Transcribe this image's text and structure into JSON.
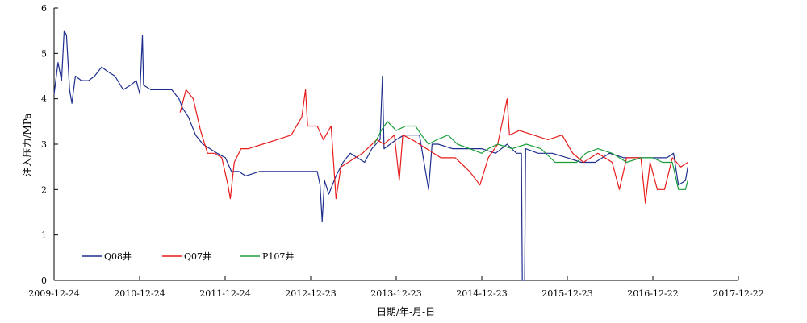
{
  "chart_data": {
    "type": "line",
    "xlabel": "日期/年-月-日",
    "ylabel": "注入压力/MPa",
    "ylim": [
      0,
      6
    ],
    "yticks": [
      0,
      1,
      2,
      3,
      4,
      5,
      6
    ],
    "xlim": [
      "2009-12-24",
      "2017-12-22"
    ],
    "xticks": [
      "2009-12-24",
      "2010-12-24",
      "2011-12-24",
      "2012-12-23",
      "2013-12-23",
      "2014-12-23",
      "2015-12-23",
      "2016-12-22",
      "2017-12-22"
    ],
    "legend_position": "bottom-left inside",
    "grid": false,
    "series": [
      {
        "name": "Q08井",
        "color": "#1f2f8f",
        "points": [
          [
            "2009-12-24",
            4.1
          ],
          [
            "2010-01-10",
            4.8
          ],
          [
            "2010-01-25",
            4.4
          ],
          [
            "2010-02-05",
            5.5
          ],
          [
            "2010-02-15",
            5.4
          ],
          [
            "2010-02-28",
            4.2
          ],
          [
            "2010-03-10",
            3.9
          ],
          [
            "2010-03-25",
            4.5
          ],
          [
            "2010-04-20",
            4.4
          ],
          [
            "2010-05-20",
            4.4
          ],
          [
            "2010-06-15",
            4.5
          ],
          [
            "2010-07-15",
            4.7
          ],
          [
            "2010-08-10",
            4.6
          ],
          [
            "2010-09-10",
            4.5
          ],
          [
            "2010-10-15",
            4.2
          ],
          [
            "2010-11-15",
            4.3
          ],
          [
            "2010-12-10",
            4.4
          ],
          [
            "2010-12-25",
            4.1
          ],
          [
            "2011-01-05",
            5.4
          ],
          [
            "2011-01-10",
            4.3
          ],
          [
            "2011-02-10",
            4.2
          ],
          [
            "2011-03-10",
            4.2
          ],
          [
            "2011-04-10",
            4.2
          ],
          [
            "2011-05-10",
            4.2
          ],
          [
            "2011-06-10",
            4.0
          ],
          [
            "2011-06-25",
            3.8
          ],
          [
            "2011-07-20",
            3.6
          ],
          [
            "2011-08-20",
            3.2
          ],
          [
            "2011-09-20",
            3.0
          ],
          [
            "2011-10-20",
            2.9
          ],
          [
            "2011-11-20",
            2.8
          ],
          [
            "2011-12-25",
            2.7
          ],
          [
            "2012-01-20",
            2.4
          ],
          [
            "2012-02-20",
            2.4
          ],
          [
            "2012-03-20",
            2.3
          ],
          [
            "2012-05-20",
            2.4
          ],
          [
            "2012-07-20",
            2.4
          ],
          [
            "2012-09-20",
            2.4
          ],
          [
            "2012-11-20",
            2.4
          ],
          [
            "2012-12-23",
            2.4
          ],
          [
            "2013-01-20",
            2.4
          ],
          [
            "2013-02-01",
            2.1
          ],
          [
            "2013-02-10",
            1.3
          ],
          [
            "2013-02-20",
            2.2
          ],
          [
            "2013-03-10",
            1.9
          ],
          [
            "2013-04-10",
            2.3
          ],
          [
            "2013-05-10",
            2.6
          ],
          [
            "2013-06-10",
            2.8
          ],
          [
            "2013-07-10",
            2.7
          ],
          [
            "2013-08-10",
            2.6
          ],
          [
            "2013-09-10",
            2.9
          ],
          [
            "2013-10-15",
            3.1
          ],
          [
            "2013-10-25",
            4.5
          ],
          [
            "2013-11-01",
            2.9
          ],
          [
            "2013-12-23",
            3.1
          ],
          [
            "2014-01-25",
            3.2
          ],
          [
            "2014-03-10",
            3.2
          ],
          [
            "2014-04-01",
            3.2
          ],
          [
            "2014-05-10",
            2.0
          ],
          [
            "2014-05-25",
            3.0
          ],
          [
            "2014-06-20",
            3.0
          ],
          [
            "2014-08-20",
            2.9
          ],
          [
            "2014-10-20",
            2.9
          ],
          [
            "2014-12-23",
            2.9
          ],
          [
            "2015-02-20",
            2.8
          ],
          [
            "2015-04-10",
            3.0
          ],
          [
            "2015-05-20",
            2.8
          ],
          [
            "2015-06-10",
            2.8
          ],
          [
            "2015-06-14",
            0.0
          ],
          [
            "2015-06-24",
            0.0
          ],
          [
            "2015-06-28",
            2.9
          ],
          [
            "2015-08-20",
            2.8
          ],
          [
            "2015-10-20",
            2.8
          ],
          [
            "2015-12-23",
            2.7
          ],
          [
            "2016-02-20",
            2.6
          ],
          [
            "2016-04-20",
            2.6
          ],
          [
            "2016-06-20",
            2.8
          ],
          [
            "2016-08-20",
            2.7
          ],
          [
            "2016-10-20",
            2.7
          ],
          [
            "2016-12-22",
            2.7
          ],
          [
            "2017-02-20",
            2.7
          ],
          [
            "2017-03-20",
            2.8
          ],
          [
            "2017-04-10",
            2.1
          ],
          [
            "2017-05-10",
            2.2
          ],
          [
            "2017-05-20",
            2.5
          ]
        ]
      },
      {
        "name": "Q07井",
        "color": "#e81c1c",
        "points": [
          [
            "2011-06-15",
            3.7
          ],
          [
            "2011-07-10",
            4.2
          ],
          [
            "2011-08-10",
            4.0
          ],
          [
            "2011-09-10",
            3.3
          ],
          [
            "2011-10-10",
            2.8
          ],
          [
            "2011-11-10",
            2.8
          ],
          [
            "2011-12-10",
            2.7
          ],
          [
            "2012-01-05",
            2.1
          ],
          [
            "2012-01-15",
            1.8
          ],
          [
            "2012-02-01",
            2.6
          ],
          [
            "2012-03-01",
            2.9
          ],
          [
            "2012-04-01",
            2.9
          ],
          [
            "2012-06-01",
            3.0
          ],
          [
            "2012-08-01",
            3.1
          ],
          [
            "2012-10-01",
            3.2
          ],
          [
            "2012-11-15",
            3.6
          ],
          [
            "2012-12-01",
            4.2
          ],
          [
            "2012-12-10",
            3.4
          ],
          [
            "2013-01-20",
            3.4
          ],
          [
            "2013-02-15",
            3.1
          ],
          [
            "2013-03-20",
            3.4
          ],
          [
            "2013-04-10",
            1.8
          ],
          [
            "2013-05-01",
            2.5
          ],
          [
            "2013-06-01",
            2.6
          ],
          [
            "2013-08-01",
            2.8
          ],
          [
            "2013-10-01",
            3.1
          ],
          [
            "2013-11-01",
            3.0
          ],
          [
            "2013-12-15",
            3.2
          ],
          [
            "2014-01-05",
            2.2
          ],
          [
            "2014-01-20",
            3.2
          ],
          [
            "2014-03-01",
            3.1
          ],
          [
            "2014-05-01",
            2.9
          ],
          [
            "2014-07-01",
            2.7
          ],
          [
            "2014-09-01",
            2.7
          ],
          [
            "2014-11-01",
            2.4
          ],
          [
            "2014-12-15",
            2.1
          ],
          [
            "2015-01-20",
            2.7
          ],
          [
            "2015-03-01",
            3.0
          ],
          [
            "2015-04-10",
            4.0
          ],
          [
            "2015-04-20",
            3.2
          ],
          [
            "2015-06-01",
            3.3
          ],
          [
            "2015-08-01",
            3.2
          ],
          [
            "2015-10-01",
            3.1
          ],
          [
            "2015-12-01",
            3.2
          ],
          [
            "2016-01-15",
            2.8
          ],
          [
            "2016-03-01",
            2.6
          ],
          [
            "2016-05-01",
            2.8
          ],
          [
            "2016-07-01",
            2.6
          ],
          [
            "2016-08-01",
            2.0
          ],
          [
            "2016-09-01",
            2.7
          ],
          [
            "2016-11-01",
            2.7
          ],
          [
            "2016-11-20",
            1.7
          ],
          [
            "2016-12-10",
            2.6
          ],
          [
            "2017-01-10",
            2.0
          ],
          [
            "2017-02-10",
            2.0
          ],
          [
            "2017-03-15",
            2.7
          ],
          [
            "2017-04-20",
            2.5
          ],
          [
            "2017-05-20",
            2.6
          ]
        ]
      },
      {
        "name": "P107井",
        "color": "#1a9e3a",
        "points": [
          [
            "2013-09-20",
            3.0
          ],
          [
            "2013-10-20",
            3.3
          ],
          [
            "2013-11-15",
            3.5
          ],
          [
            "2013-12-23",
            3.3
          ],
          [
            "2014-02-01",
            3.4
          ],
          [
            "2014-03-15",
            3.4
          ],
          [
            "2014-04-10",
            3.2
          ],
          [
            "2014-05-10",
            3.0
          ],
          [
            "2014-06-15",
            3.1
          ],
          [
            "2014-08-01",
            3.2
          ],
          [
            "2014-09-10",
            3.0
          ],
          [
            "2014-11-01",
            2.9
          ],
          [
            "2014-12-23",
            2.8
          ],
          [
            "2015-01-20",
            2.9
          ],
          [
            "2015-03-01",
            3.0
          ],
          [
            "2015-05-01",
            2.9
          ],
          [
            "2015-07-01",
            3.0
          ],
          [
            "2015-09-01",
            2.9
          ],
          [
            "2015-11-01",
            2.6
          ],
          [
            "2015-12-23",
            2.6
          ],
          [
            "2016-02-01",
            2.6
          ],
          [
            "2016-03-10",
            2.8
          ],
          [
            "2016-05-01",
            2.9
          ],
          [
            "2016-07-01",
            2.8
          ],
          [
            "2016-09-01",
            2.6
          ],
          [
            "2016-11-01",
            2.7
          ],
          [
            "2016-12-22",
            2.7
          ],
          [
            "2017-02-01",
            2.6
          ],
          [
            "2017-03-15",
            2.6
          ],
          [
            "2017-04-10",
            2.0
          ],
          [
            "2017-05-10",
            2.0
          ],
          [
            "2017-05-20",
            2.2
          ]
        ]
      }
    ]
  }
}
